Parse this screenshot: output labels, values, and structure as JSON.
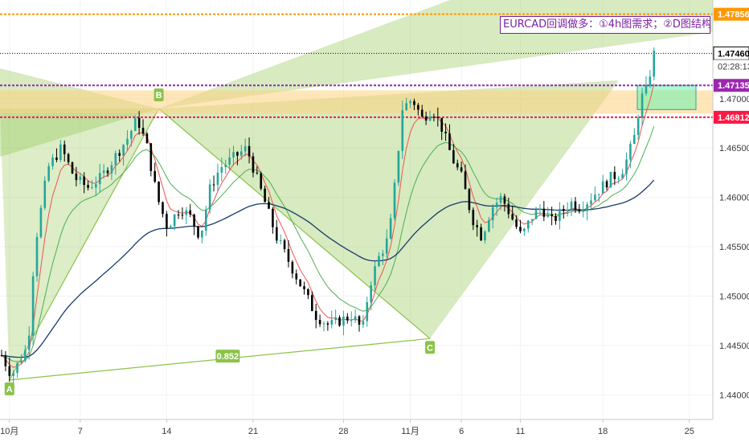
{
  "chart_data": {
    "type": "candlestick",
    "symbol": "EURCAD",
    "annotation": "EURCAD回调做多：①4h图需求；②D图结构。",
    "ylim": [
      1.4375,
      1.48
    ],
    "y_ticks": [
      "1.47000",
      "1.46500",
      "1.46000",
      "1.45500",
      "1.45000",
      "1.44500",
      "1.44000"
    ],
    "x_ticks": [
      "10月",
      "7",
      "14",
      "21",
      "28",
      "11月",
      "6",
      "11",
      "18",
      "25"
    ],
    "price_lines": [
      {
        "label": "1.47856",
        "value": 1.47856,
        "color": "#ff9800"
      },
      {
        "label": "1.47460",
        "value": 1.4746,
        "color": "#000000"
      },
      {
        "label": "1.47135",
        "value": 1.47135,
        "color": "#9c27b0"
      },
      {
        "label": "1.46812",
        "value": 1.46812,
        "color": "#ff1744"
      }
    ],
    "countdown": "02:28:13",
    "pattern_points": [
      {
        "label": "A",
        "x": 2,
        "y": 1.4415
      },
      {
        "label": "B",
        "x": 40,
        "y": 1.469
      },
      {
        "label": "C",
        "x": 109,
        "y": 1.4457
      }
    ],
    "ratio_label": "0.852",
    "supply_demand_zone": {
      "top": 1.47085,
      "bottom": 1.4685
    },
    "target_box": {
      "top": 1.47135,
      "bottom": 1.4689
    },
    "candles": []
  },
  "colors": {
    "bull": "#26a69a",
    "bear": "#000000",
    "ema_fast": "#ef5350",
    "ema_mid": "#4caf50",
    "ema_slow": "#1a3a6b",
    "pattern_fill": "#8bc34a",
    "zone_fill": "#ffd180"
  }
}
